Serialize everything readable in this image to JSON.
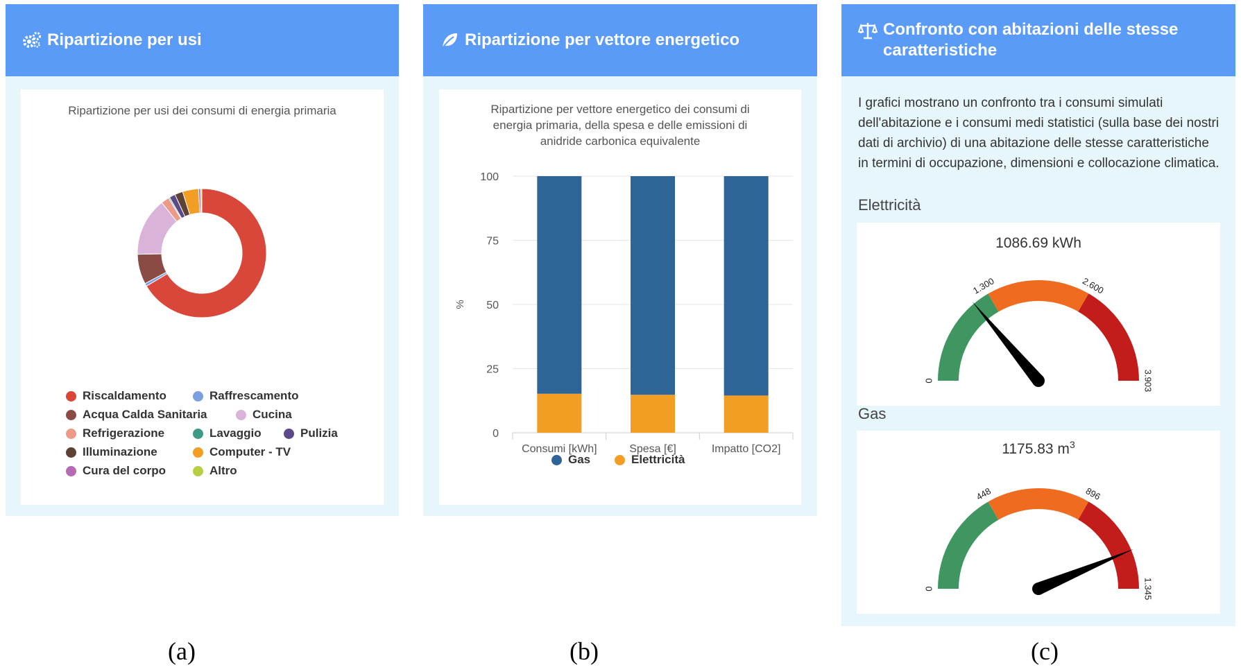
{
  "panel_a": {
    "title": "Ripartizione per usi",
    "icon": "gears-icon",
    "chart_title": "Ripartizione per usi dei consumi di energia primaria",
    "legend": [
      {
        "label": "Riscaldamento",
        "color": "#d9463a"
      },
      {
        "label": "Raffrescamento",
        "color": "#7b9fe0"
      },
      {
        "label": "Acqua Calda Sanitaria",
        "color": "#8b4b45"
      },
      {
        "label": "Cucina",
        "color": "#d9b3d9"
      },
      {
        "label": "Refrigerazione",
        "color": "#ee9a88"
      },
      {
        "label": "Lavaggio",
        "color": "#3d9a84"
      },
      {
        "label": "Pulizia",
        "color": "#5a4a8a"
      },
      {
        "label": "Illuminazione",
        "color": "#5c4336"
      },
      {
        "label": "Computer - TV",
        "color": "#f29e25"
      },
      {
        "label": "Cura del corpo",
        "color": "#b56ab6"
      },
      {
        "label": "Altro",
        "color": "#b7cf45"
      }
    ]
  },
  "panel_b": {
    "title": "Ripartizione per vettore energetico",
    "icon": "leaf-icon",
    "chart_title_lines": [
      "Ripartizione per vettore energetico dei consumi di",
      "energia primaria, della spesa e delle emissioni di",
      "anidride carbonica equivalente"
    ],
    "legend": [
      {
        "label": "Gas",
        "color": "#2e6596"
      },
      {
        "label": "Elettricità",
        "color": "#f29e25"
      }
    ]
  },
  "panel_c": {
    "title": "Confronto con abitazioni delle stesse caratteristiche",
    "icon": "balance-scale-icon",
    "description": "I grafici mostrano un confronto tra i consumi simulati dell'abitazione e i consumi medi statistici (sulla base dei nostri dati di archivio) di una abitazione delle stesse caratteristiche in termini di occupazione, dimensioni e collocazione climatica.",
    "gauges": [
      {
        "section": "Elettricità",
        "value_text": "1086.69 kWh",
        "value_sup": "",
        "value": 1086.69,
        "min": 0,
        "max": 3903,
        "thresholds": [
          1300,
          2600
        ],
        "tick_labels": [
          "0",
          "1.300",
          "2.600",
          "3.903"
        ]
      },
      {
        "section": "Gas",
        "value_text": "1175.83 m",
        "value_sup": "3",
        "value": 1175.83,
        "min": 0,
        "max": 1345,
        "thresholds": [
          448,
          896
        ],
        "tick_labels": [
          "0",
          "448",
          "896",
          "1.345"
        ]
      }
    ],
    "gauge_colors": [
      "#3f9660",
      "#ef6b1f",
      "#c21d1a"
    ]
  },
  "captions": [
    "(a)",
    "(b)",
    "(c)"
  ],
  "chart_data": [
    {
      "type": "pie",
      "title": "Ripartizione per usi dei consumi di energia primaria",
      "categories": [
        "Riscaldamento",
        "Raffrescamento",
        "Acqua Calda Sanitaria",
        "Cucina",
        "Refrigerazione",
        "Lavaggio",
        "Pulizia",
        "Illuminazione",
        "Computer - TV",
        "Cura del corpo",
        "Altro"
      ],
      "values": [
        66.0,
        0.7,
        7.5,
        14.5,
        2.0,
        0.3,
        1.5,
        2.0,
        4.0,
        0.5,
        0.3
      ],
      "colors": [
        "#d9463a",
        "#7b9fe0",
        "#8b4b45",
        "#d9b3d9",
        "#ee9a88",
        "#3d9a84",
        "#5a4a8a",
        "#5c4336",
        "#f29e25",
        "#b56ab6",
        "#b7cf45"
      ],
      "legend": "bottom"
    },
    {
      "type": "bar",
      "stacked": true,
      "title": "Ripartizione per vettore energetico dei consumi di energia primaria, della spesa e delle emissioni di anidride carbonica equivalente",
      "categories": [
        "Consumi [kWh]",
        "Spesa [€]",
        "Impatto [CO2]"
      ],
      "series": [
        {
          "name": "Gas",
          "values": [
            84.8,
            85.2,
            85.5
          ],
          "color": "#2e6596"
        },
        {
          "name": "Elettricità",
          "values": [
            15.2,
            14.8,
            14.5
          ],
          "color": "#f29e25"
        }
      ],
      "ylabel": "%",
      "ylim": [
        0,
        100
      ],
      "yticks": [
        0,
        25,
        50,
        75,
        100
      ],
      "grid": true,
      "legend": "bottom"
    }
  ]
}
